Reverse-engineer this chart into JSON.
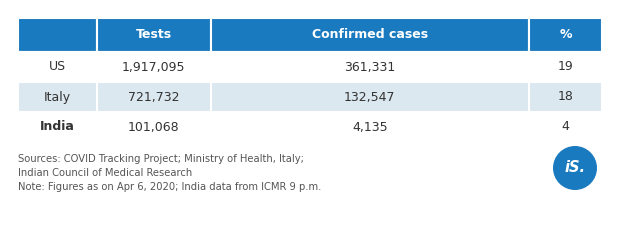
{
  "headers": [
    "",
    "Tests",
    "Confirmed cases",
    "%"
  ],
  "rows": [
    [
      "US",
      "1,917,095",
      "361,331",
      "19"
    ],
    [
      "Italy",
      "721,732",
      "132,547",
      "18"
    ],
    [
      "India",
      "101,068",
      "4,135",
      "4"
    ]
  ],
  "header_bg": "#1a7abf",
  "header_text_color": "#ffffff",
  "row_bg_odd": "#ffffff",
  "row_bg_even": "#dce8f0",
  "row_text_color": "#333333",
  "footer_text_line1": "Sources: COVID Tracking Project; Ministry of Health, Italy;",
  "footer_text_line2": "Indian Council of Medical Research",
  "footer_text_line3": "Note: Figures as on Apr 6, 2020; India data from ICMR 9 p.m.",
  "footer_color": "#555555",
  "bg_color": "#ffffff",
  "logo_circle_color": "#1a7abf",
  "logo_text": "iS.",
  "logo_text_color": "#ffffff"
}
